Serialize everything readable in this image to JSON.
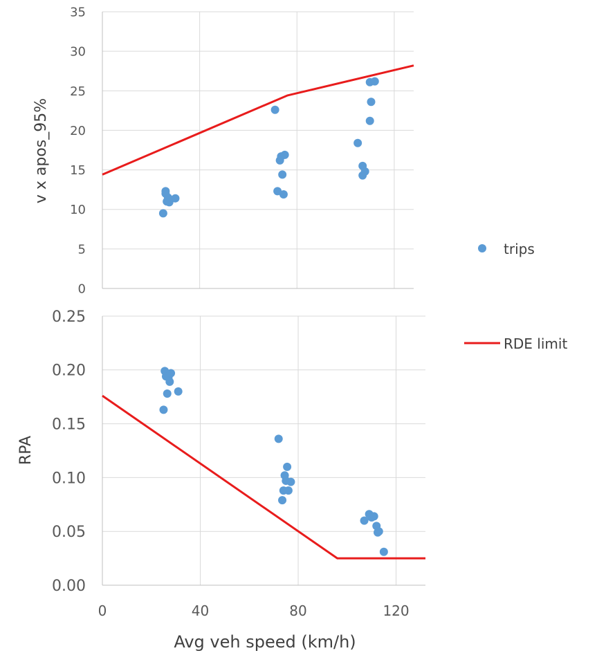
{
  "chart_data": [
    {
      "type": "scatter",
      "ylabel": "v x apos_95%",
      "xlim": [
        0,
        128
      ],
      "ylim": [
        0,
        35
      ],
      "yticks": [
        0,
        5,
        10,
        15,
        20,
        25,
        30,
        35
      ],
      "xticks": [
        0,
        40,
        80,
        120
      ],
      "grid": true,
      "series": [
        {
          "name": "trips",
          "color": "#5b9bd5",
          "marker": "circle",
          "points": [
            [
              25,
              9.5
            ],
            [
              26,
              12.3
            ],
            [
              26,
              12.0
            ],
            [
              26.5,
              11.0
            ],
            [
              27,
              11.5
            ],
            [
              27.5,
              10.9
            ],
            [
              30,
              11.4
            ],
            [
              71,
              22.6
            ],
            [
              72,
              12.3
            ],
            [
              73,
              16.2
            ],
            [
              73.5,
              16.7
            ],
            [
              74,
              14.4
            ],
            [
              74.5,
              11.9
            ],
            [
              75,
              16.9
            ],
            [
              105,
              18.4
            ],
            [
              107,
              15.5
            ],
            [
              107,
              14.3
            ],
            [
              108,
              14.8
            ],
            [
              110,
              26.1
            ],
            [
              110,
              21.2
            ],
            [
              110.5,
              23.6
            ],
            [
              112,
              26.2
            ]
          ]
        },
        {
          "name": "RDE limit",
          "type": "line",
          "color": "#e81c1c",
          "points": [
            [
              0,
              14.4
            ],
            [
              76,
              24.4
            ],
            [
              128,
              28.2
            ]
          ]
        }
      ]
    },
    {
      "type": "scatter",
      "ylabel": "RPA",
      "xlabel": "Avg veh speed (km/h)",
      "xlim": [
        0,
        132
      ],
      "ylim": [
        0,
        0.25
      ],
      "yticks": [
        "0.00",
        "0.05",
        "0.10",
        "0.15",
        "0.20",
        "0.25"
      ],
      "xticks": [
        0,
        40,
        80,
        120
      ],
      "grid": true,
      "series": [
        {
          "name": "trips",
          "color": "#5b9bd5",
          "marker": "circle",
          "points": [
            [
              25,
              0.163
            ],
            [
              25.5,
              0.199
            ],
            [
              26,
              0.194
            ],
            [
              26.5,
              0.178
            ],
            [
              27,
              0.193
            ],
            [
              27.5,
              0.189
            ],
            [
              28,
              0.197
            ],
            [
              31,
              0.18
            ],
            [
              72,
              0.136
            ],
            [
              73.5,
              0.079
            ],
            [
              74,
              0.088
            ],
            [
              74.5,
              0.102
            ],
            [
              75,
              0.097
            ],
            [
              75.5,
              0.11
            ],
            [
              76,
              0.088
            ],
            [
              77,
              0.096
            ],
            [
              107,
              0.06
            ],
            [
              109,
              0.066
            ],
            [
              110,
              0.063
            ],
            [
              111,
              0.064
            ],
            [
              112,
              0.055
            ],
            [
              112.5,
              0.049
            ],
            [
              113,
              0.05
            ],
            [
              115,
              0.031
            ]
          ]
        },
        {
          "name": "RDE limit",
          "type": "line",
          "color": "#e81c1c",
          "points": [
            [
              0,
              0.176
            ],
            [
              96,
              0.025
            ],
            [
              132,
              0.025
            ]
          ]
        }
      ]
    }
  ],
  "legend": {
    "placement": "right",
    "items": [
      {
        "label": "trips",
        "type": "marker",
        "color": "#5b9bd5"
      },
      {
        "label": "RDE limit",
        "type": "line",
        "color": "#e81c1c"
      }
    ]
  }
}
